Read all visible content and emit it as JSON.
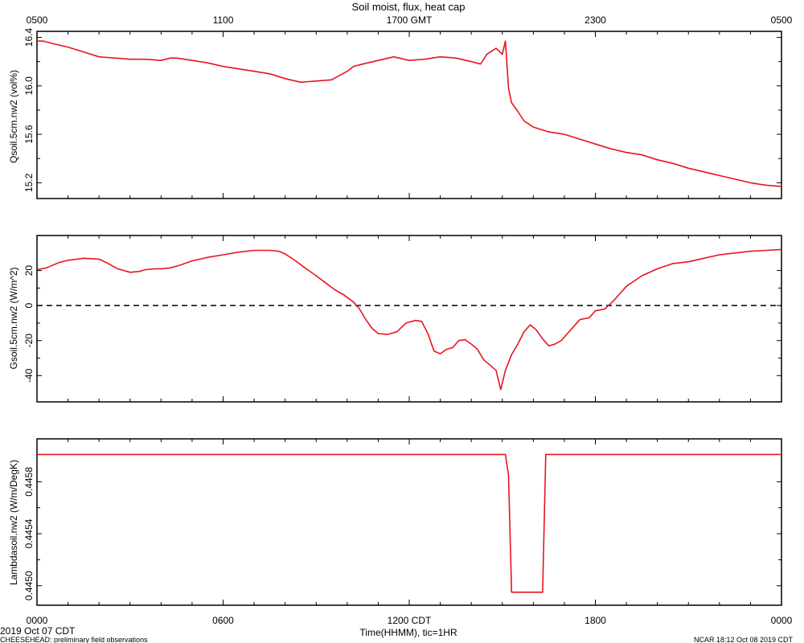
{
  "chart_data": {
    "type": "line",
    "title": "Soil moist, flux, heat cap",
    "top_axis_ticks": [
      "0500",
      "1100",
      "1700 GMT",
      "2300",
      "0500"
    ],
    "bottom_axis_ticks": [
      "0000",
      "0600",
      "1200 CDT",
      "1800",
      "0000"
    ],
    "xlabel": "Time(HHMM), tic=1HR",
    "xlim_hours": [
      0,
      24
    ],
    "footer": {
      "date_label": "2019 Oct 07 CDT",
      "source": "CHEESEHEAD: preliminary field observations",
      "stamp": "NCAR 18:12 Oct 08 2019 CDT"
    },
    "line_color": "#e8141c",
    "panels": [
      {
        "ylabel": "Qsoil.5cm.nw2 (vol%)",
        "ylim": [
          15.07,
          16.45
        ],
        "yticks": [
          "15.2",
          "15.6",
          "16.0",
          "16.4"
        ],
        "ytick_values": [
          15.2,
          15.6,
          16.0,
          16.4
        ],
        "series": [
          {
            "x": [
              0,
              0.2,
              0.5,
              1,
              1.5,
              2,
              2.5,
              3,
              3.5,
              4,
              4.3,
              4.5,
              5,
              5.5,
              6,
              6.5,
              7,
              7.5,
              8,
              8.5,
              9,
              9.5,
              10,
              10.2,
              10.5,
              11,
              11.5,
              12,
              12.5,
              13,
              13.5,
              14,
              14.3,
              14.5,
              14.8,
              15,
              15.1,
              15.2,
              15.3,
              15.5,
              15.7,
              16,
              16.5,
              17,
              17.5,
              18,
              18.5,
              19,
              19.5,
              20,
              20.5,
              21,
              21.5,
              22,
              22.5,
              23,
              23.5,
              24
            ],
            "values": [
              16.37,
              16.37,
              16.35,
              16.32,
              16.28,
              16.24,
              16.23,
              16.22,
              16.22,
              16.21,
              16.23,
              16.23,
              16.21,
              16.19,
              16.16,
              16.14,
              16.12,
              16.1,
              16.06,
              16.03,
              16.04,
              16.05,
              16.12,
              16.16,
              16.18,
              16.21,
              16.24,
              16.21,
              16.22,
              16.24,
              16.23,
              16.2,
              16.18,
              16.26,
              16.31,
              16.26,
              16.37,
              15.98,
              15.86,
              15.79,
              15.71,
              15.66,
              15.62,
              15.6,
              15.56,
              15.52,
              15.48,
              15.45,
              15.43,
              15.39,
              15.36,
              15.32,
              15.29,
              15.26,
              15.23,
              15.2,
              15.18,
              15.17
            ]
          }
        ]
      },
      {
        "ylabel": "Gsoil.5cm.nw2 (W/m^2)",
        "ylim": [
          -55,
          40
        ],
        "yticks": [
          "-40",
          "-20",
          "0",
          "20"
        ],
        "ytick_values": [
          -40,
          -20,
          0,
          20
        ],
        "zero_line": true,
        "series": [
          {
            "x": [
              0,
              0.3,
              0.7,
              1,
              1.5,
              2,
              2.3,
              2.6,
              3,
              3.3,
              3.5,
              3.8,
              4,
              4.3,
              4.6,
              5,
              5.5,
              6,
              6.5,
              7,
              7.5,
              7.8,
              8,
              8.3,
              8.6,
              9,
              9.3,
              9.6,
              9.9,
              10.2,
              10.4,
              10.6,
              10.8,
              11,
              11.3,
              11.6,
              11.9,
              12.2,
              12.4,
              12.6,
              12.8,
              13,
              13.2,
              13.4,
              13.6,
              13.8,
              14,
              14.2,
              14.4,
              14.6,
              14.8,
              14.95,
              15.1,
              15.3,
              15.5,
              15.7,
              15.9,
              16.1,
              16.3,
              16.5,
              16.7,
              16.9,
              17.1,
              17.3,
              17.5,
              17.8,
              18,
              18.3,
              18.6,
              19,
              19.5,
              20,
              20.5,
              21,
              21.5,
              22,
              22.5,
              23,
              23.5,
              24
            ],
            "values": [
              20.5,
              21.5,
              24.5,
              25.8,
              27,
              26.5,
              24,
              21,
              19,
              19.5,
              20.5,
              21,
              21,
              21.5,
              23,
              25.5,
              27.5,
              29,
              30.5,
              31.5,
              31.5,
              31,
              29.5,
              26,
              22,
              17,
              13,
              9,
              6,
              2,
              -2,
              -8,
              -13,
              -16,
              -16.5,
              -15,
              -10,
              -8.5,
              -9,
              -16,
              -26,
              -27.5,
              -25,
              -24,
              -20,
              -19.5,
              -22,
              -25,
              -31,
              -34,
              -37,
              -48,
              -37,
              -28,
              -22,
              -15,
              -11,
              -14,
              -19,
              -23,
              -22,
              -20,
              -16,
              -12,
              -8,
              -7,
              -3,
              -2,
              3,
              11,
              17,
              21,
              24,
              25,
              27,
              29,
              30,
              31,
              31.5,
              32
            ]
          }
        ]
      },
      {
        "ylabel": "Lambdasoil.nw2 (W/m/DegK)",
        "ylim": [
          0.44485,
          0.44613
        ],
        "yticks": [
          "0.4450",
          "0.4454",
          "0.4458"
        ],
        "ytick_values": [
          0.445,
          0.4454,
          0.4458
        ],
        "series": [
          {
            "x": [
              0,
              15.1,
              15.2,
              15.3,
              16.3,
              16.4,
              24
            ],
            "values": [
              0.44601,
              0.44601,
              0.44585,
              0.44495,
              0.44495,
              0.44601,
              0.44601
            ]
          }
        ]
      }
    ]
  }
}
